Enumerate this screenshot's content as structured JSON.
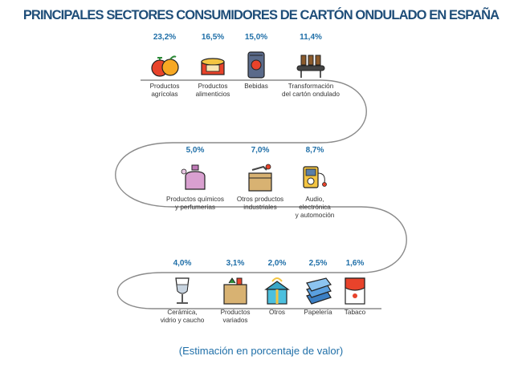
{
  "title": "PRINCIPALES SECTORES CONSUMIDORES DE CARTÓN ONDULADO EN ESPAÑA",
  "note": "(Estimación en porcentaje de valor)",
  "colors": {
    "title": "#1f4e79",
    "percent": "#1f6fa8",
    "path": "#8a8a8a"
  },
  "sectors": [
    {
      "pct": "23,2%",
      "label": "Productos\nagrícolas",
      "icon": "fruit-icon",
      "value": 23.2
    },
    {
      "pct": "16,5%",
      "label": "Productos\nalimenticios",
      "icon": "food-can-icon",
      "value": 16.5
    },
    {
      "pct": "15,0%",
      "label": "Bebidas",
      "icon": "drink-can-icon",
      "value": 15.0
    },
    {
      "pct": "11,4%",
      "label": "Transformación\ndel cartón ondulado",
      "icon": "conveyor-icon",
      "value": 11.4
    },
    {
      "pct": "5,0%",
      "label": "Productos químicos\ny perfumerías",
      "icon": "perfume-icon",
      "value": 5.0
    },
    {
      "pct": "7,0%",
      "label": "Otros productos\nindustriales",
      "icon": "industrial-box-icon",
      "value": 7.0
    },
    {
      "pct": "8,7%",
      "label": "Audio,\nelectrónica\ny automoción",
      "icon": "audio-player-icon",
      "value": 8.7
    },
    {
      "pct": "4,0%",
      "label": "Cerámica,\nvidrio y caucho",
      "icon": "wine-glass-icon",
      "value": 4.0
    },
    {
      "pct": "3,1%",
      "label": "Productos\nvariados",
      "icon": "grocery-bag-icon",
      "value": 3.1
    },
    {
      "pct": "2,0%",
      "label": "Otros",
      "icon": "gift-house-icon",
      "value": 2.0
    },
    {
      "pct": "2,5%",
      "label": "Papelería",
      "icon": "paper-stack-icon",
      "value": 2.5
    },
    {
      "pct": "1,6%",
      "label": "Tabaco",
      "icon": "cigarette-pack-icon",
      "value": 1.6
    }
  ]
}
